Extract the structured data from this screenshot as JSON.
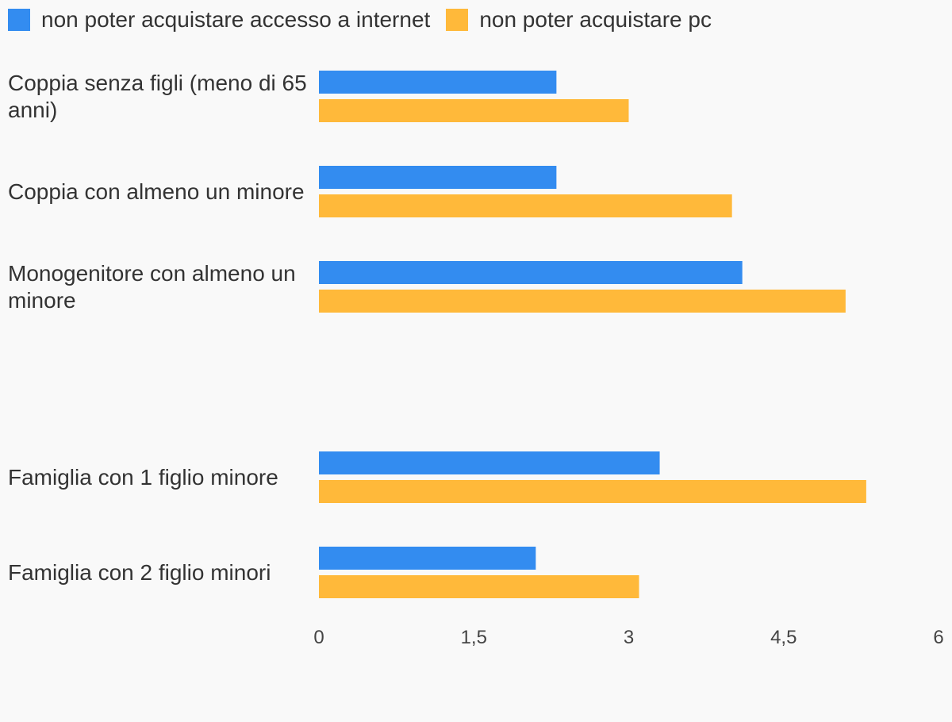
{
  "chart_data": {
    "type": "bar",
    "orientation": "horizontal",
    "categories": [
      "Coppia senza figli (meno di 65 anni)",
      "Coppia con almeno un minore",
      "Monogenitore con almeno un minore",
      "",
      "Famiglia con 1 figlio minore",
      "Famiglia con 2 figlio minori"
    ],
    "series": [
      {
        "name": "non poter acquistare accesso a internet",
        "color": "#338cf0",
        "values": [
          2.3,
          2.3,
          4.1,
          null,
          3.3,
          2.1
        ]
      },
      {
        "name": "non poter acquistare pc",
        "color": "#ffb93a",
        "values": [
          3.0,
          4.0,
          5.1,
          null,
          5.3,
          3.1
        ]
      }
    ],
    "xlim": [
      0,
      6
    ],
    "ticks": [
      "0",
      "1,5",
      "3",
      "4,5",
      "6"
    ],
    "tick_values": [
      0,
      1.5,
      3,
      4.5,
      6
    ],
    "legend_position": "top-left",
    "grid": false
  }
}
